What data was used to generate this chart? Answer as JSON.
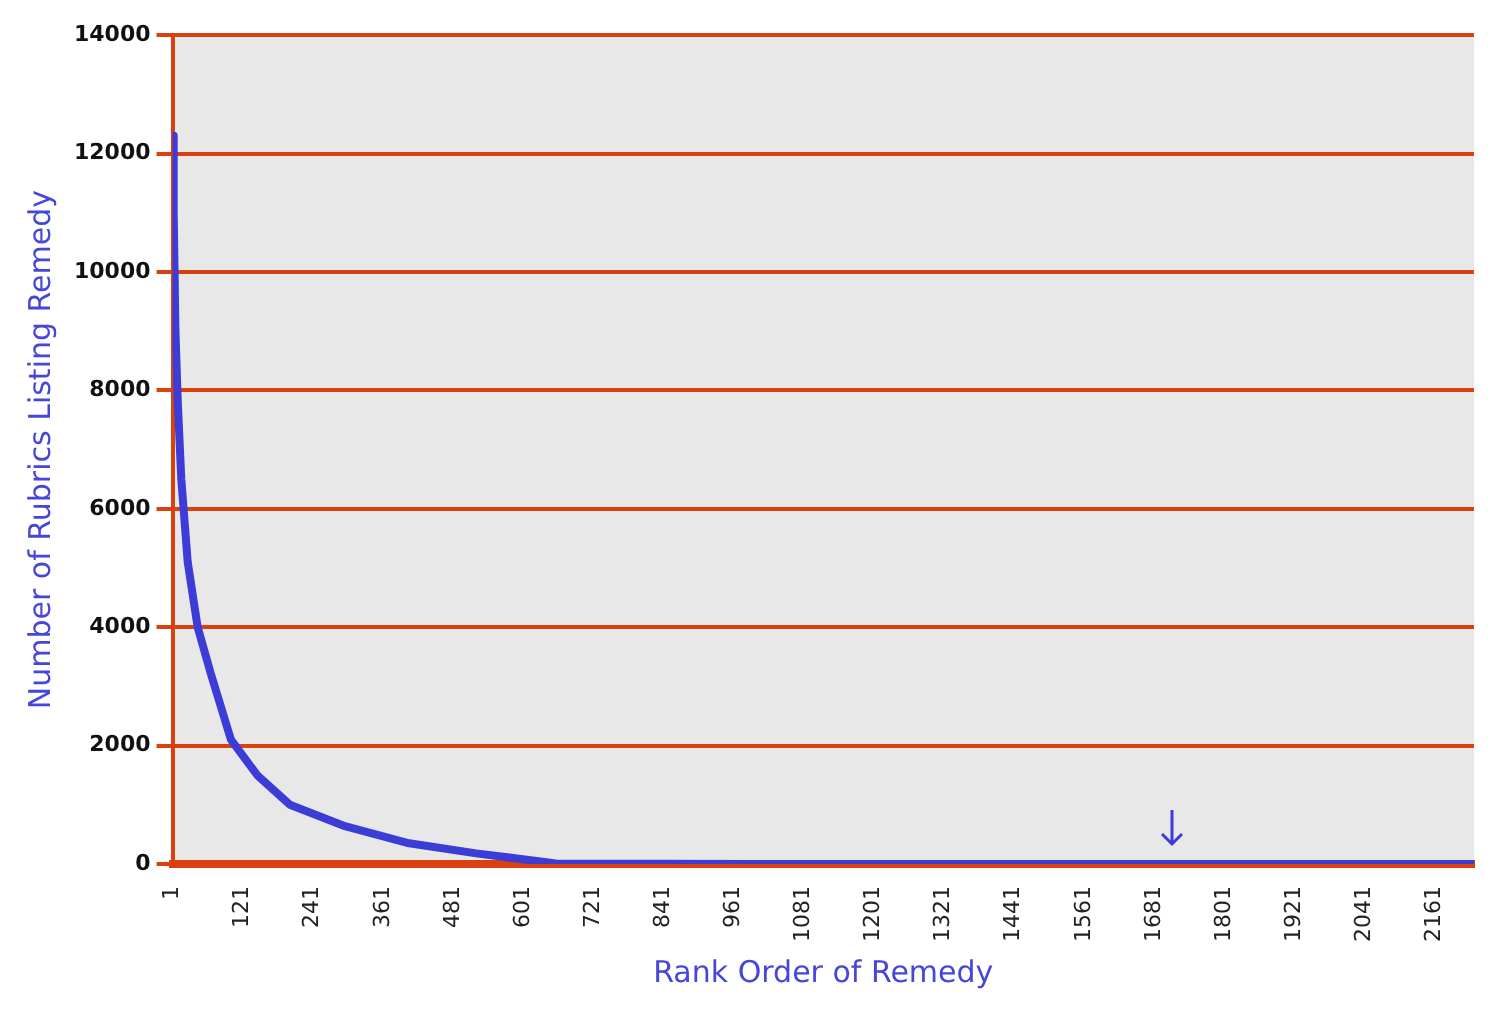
{
  "chart_data": {
    "type": "line",
    "xlabel": "Rank Order of Remedy",
    "ylabel": "Number of Rubrics Listing Remedy",
    "x": [
      1,
      3,
      6,
      10,
      16,
      27,
      44,
      67,
      101,
      146,
      202,
      293,
      406,
      521,
      657,
      1000,
      1500,
      2000,
      2229
    ],
    "series": [
      {
        "color": "#3c3cd6",
        "values": [
          12300,
          11000,
          9000,
          7800,
          6500,
          5100,
          4000,
          3200,
          2100,
          1500,
          1000,
          650,
          350,
          180,
          10,
          0,
          0,
          0,
          0
        ]
      }
    ],
    "xlim": [
      1,
      2229
    ],
    "xticks": [
      1,
      121,
      241,
      361,
      481,
      601,
      721,
      841,
      961,
      1081,
      1201,
      1321,
      1441,
      1561,
      1681,
      1801,
      1921,
      2041,
      2161
    ],
    "ylim": [
      0,
      14000
    ],
    "yticks": [
      0,
      2000,
      4000,
      6000,
      8000,
      10000,
      12000,
      14000
    ],
    "grid": "y",
    "legend": false,
    "marker": "none",
    "line_style": "solid"
  }
}
